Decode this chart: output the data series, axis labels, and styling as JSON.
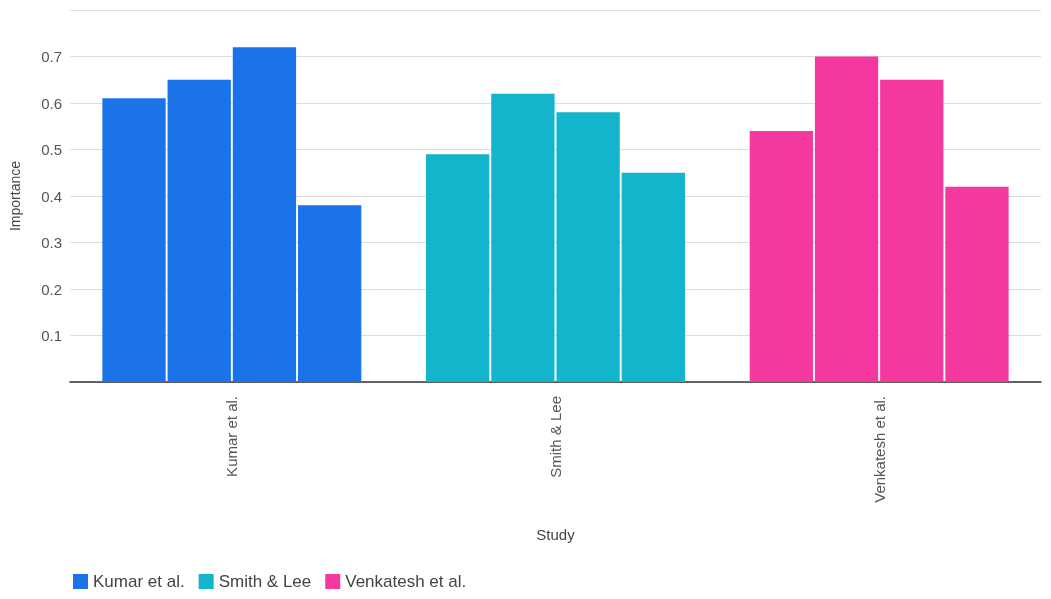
{
  "chart_data": {
    "type": "bar",
    "xlabel": "Study",
    "ylabel": "Importance",
    "categories": [
      "Kumar et al.",
      "Smith & Lee",
      "Venkatesh et al."
    ],
    "series": [
      {
        "name": "Kumar et al.",
        "color": "#1a73e8",
        "values": [
          0.61,
          null,
          null
        ]
      },
      {
        "color": "#1a73e8",
        "values": [
          0.65,
          null,
          null
        ]
      },
      {
        "color": "#1a73e8",
        "values": [
          0.72,
          null,
          null
        ]
      },
      {
        "color": "#1a73e8",
        "values": [
          0.38,
          null,
          null
        ]
      },
      {
        "name": "Smith & Lee",
        "color": "#12b5cb",
        "values": [
          null,
          0.49,
          null
        ]
      },
      {
        "color": "#12b5cb",
        "values": [
          null,
          0.62,
          null
        ]
      },
      {
        "color": "#12b5cb",
        "values": [
          null,
          0.58,
          null
        ]
      },
      {
        "color": "#12b5cb",
        "values": [
          null,
          0.45,
          null
        ]
      },
      {
        "name": "Venkatesh et al.",
        "color": "#f538a0",
        "values": [
          null,
          null,
          0.54
        ]
      },
      {
        "color": "#f538a0",
        "values": [
          null,
          null,
          0.7
        ]
      },
      {
        "color": "#f538a0",
        "values": [
          null,
          null,
          0.65
        ]
      },
      {
        "color": "#f538a0",
        "values": [
          null,
          null,
          0.42
        ]
      }
    ],
    "ylim": [
      0,
      0.8
    ],
    "yticks": [
      {
        "value": 0,
        "label": null
      },
      0.1,
      0.2,
      0.3,
      0.4,
      0.5,
      0.6,
      0.7,
      {
        "value": 0.8,
        "label": null
      }
    ],
    "grid": "y",
    "legend": "bottom left"
  }
}
